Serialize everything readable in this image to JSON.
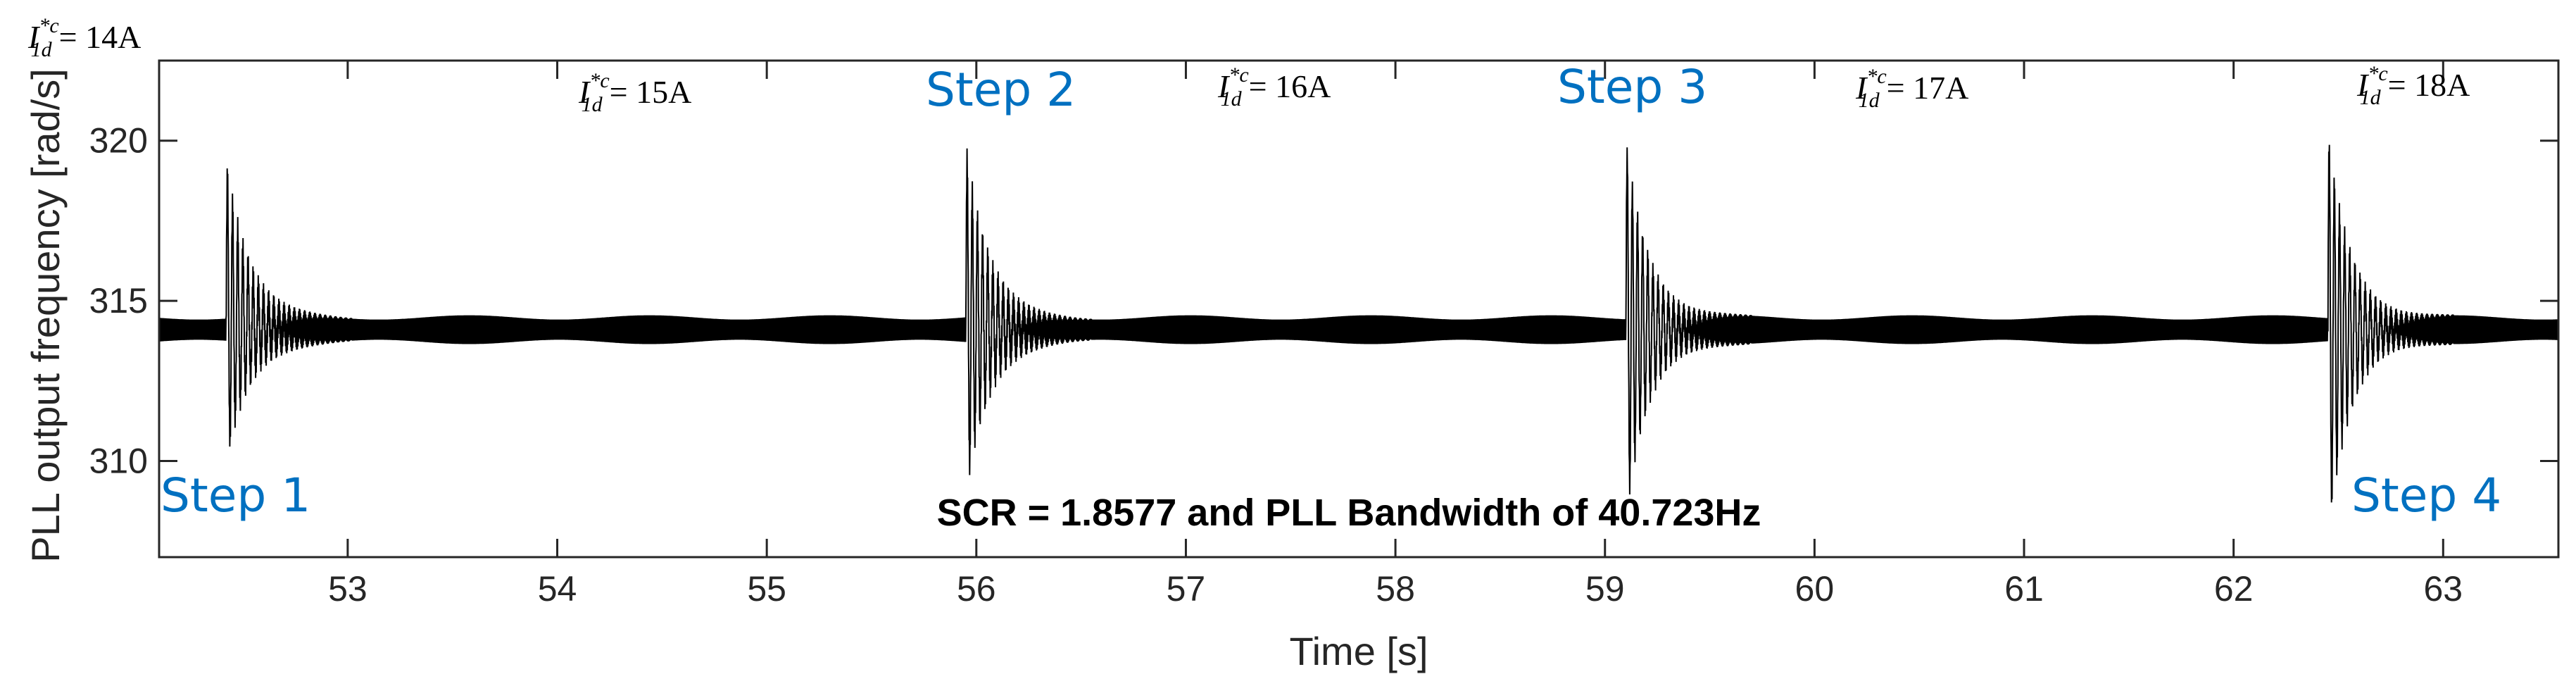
{
  "chart_data": {
    "type": "line",
    "xlabel": "Time [s]",
    "ylabel": "PLL output frequency [rad/s]",
    "xlim": [
      52.1,
      63.55
    ],
    "ylim": [
      307,
      322.5
    ],
    "xticks": [
      "53",
      "54",
      "55",
      "56",
      "57",
      "58",
      "59",
      "60",
      "61",
      "62",
      "63"
    ],
    "yticks": [
      "310",
      "315",
      "320"
    ],
    "grid": false,
    "line_color": "#000000",
    "step_color": "#0070c0",
    "baseline": 314.1,
    "steady_ripple_peak_to_peak": 0.9,
    "steps": [
      {
        "label": "Step 1",
        "time": 52.42,
        "peak_max": 319.3,
        "peak_min": 310.1
      },
      {
        "label": "Step 2",
        "time": 55.95,
        "peak_max": 319.7,
        "peak_min": 309.2
      },
      {
        "label": "Step 3",
        "time": 59.1,
        "peak_max": 319.8,
        "peak_min": 308.4
      },
      {
        "label": "Step 4",
        "time": 62.45,
        "peak_max": 320.1,
        "peak_min": 307.8
      }
    ],
    "current_annotations": [
      {
        "prefix": "I",
        "sub": "1d",
        "sup": "*c",
        "value": "= 14A"
      },
      {
        "prefix": "I",
        "sub": "1d",
        "sup": "*c",
        "value": "= 15A"
      },
      {
        "prefix": "I",
        "sub": "1d",
        "sup": "*c",
        "value": "= 16A"
      },
      {
        "prefix": "I",
        "sub": "1d",
        "sup": "*c",
        "value": "= 17A"
      },
      {
        "prefix": "I",
        "sub": "1d",
        "sup": "*c",
        "value": "= 18A"
      }
    ],
    "caption": "SCR = 1.8577 and PLL Bandwidth of 40.723Hz"
  }
}
